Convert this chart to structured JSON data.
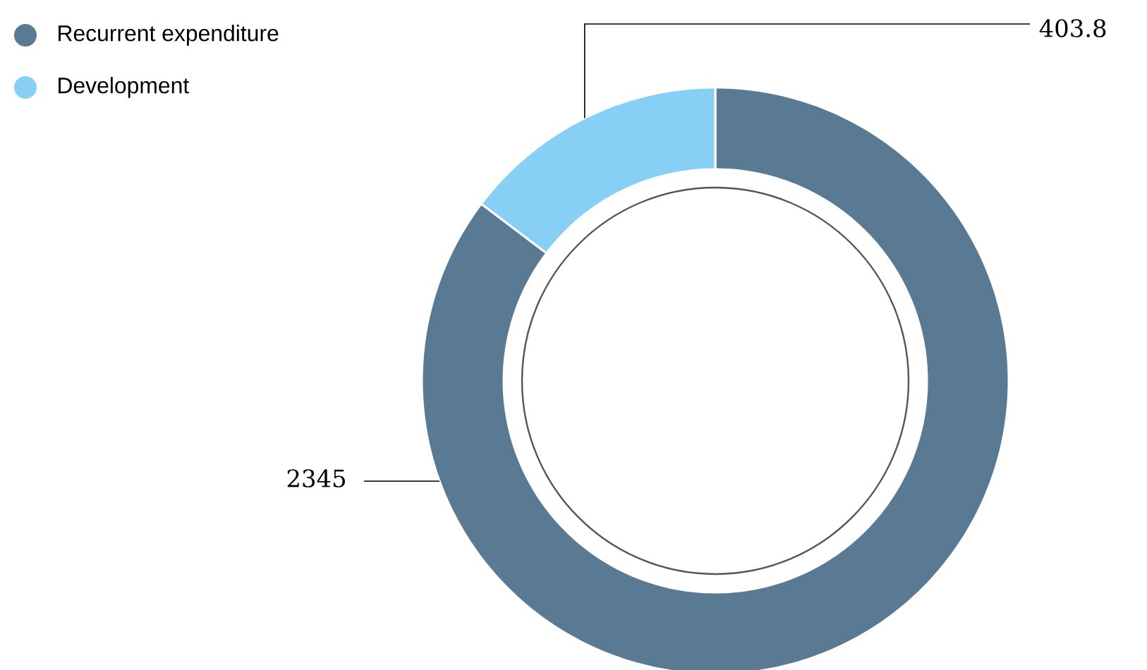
{
  "chart_data": {
    "type": "donut",
    "categories": [
      "Recurrent expenditure",
      "Development"
    ],
    "values": [
      2345,
      403.8
    ],
    "colors": [
      "#5a7a94",
      "#87cff5"
    ],
    "data_labels": true,
    "legend": "top left"
  }
}
